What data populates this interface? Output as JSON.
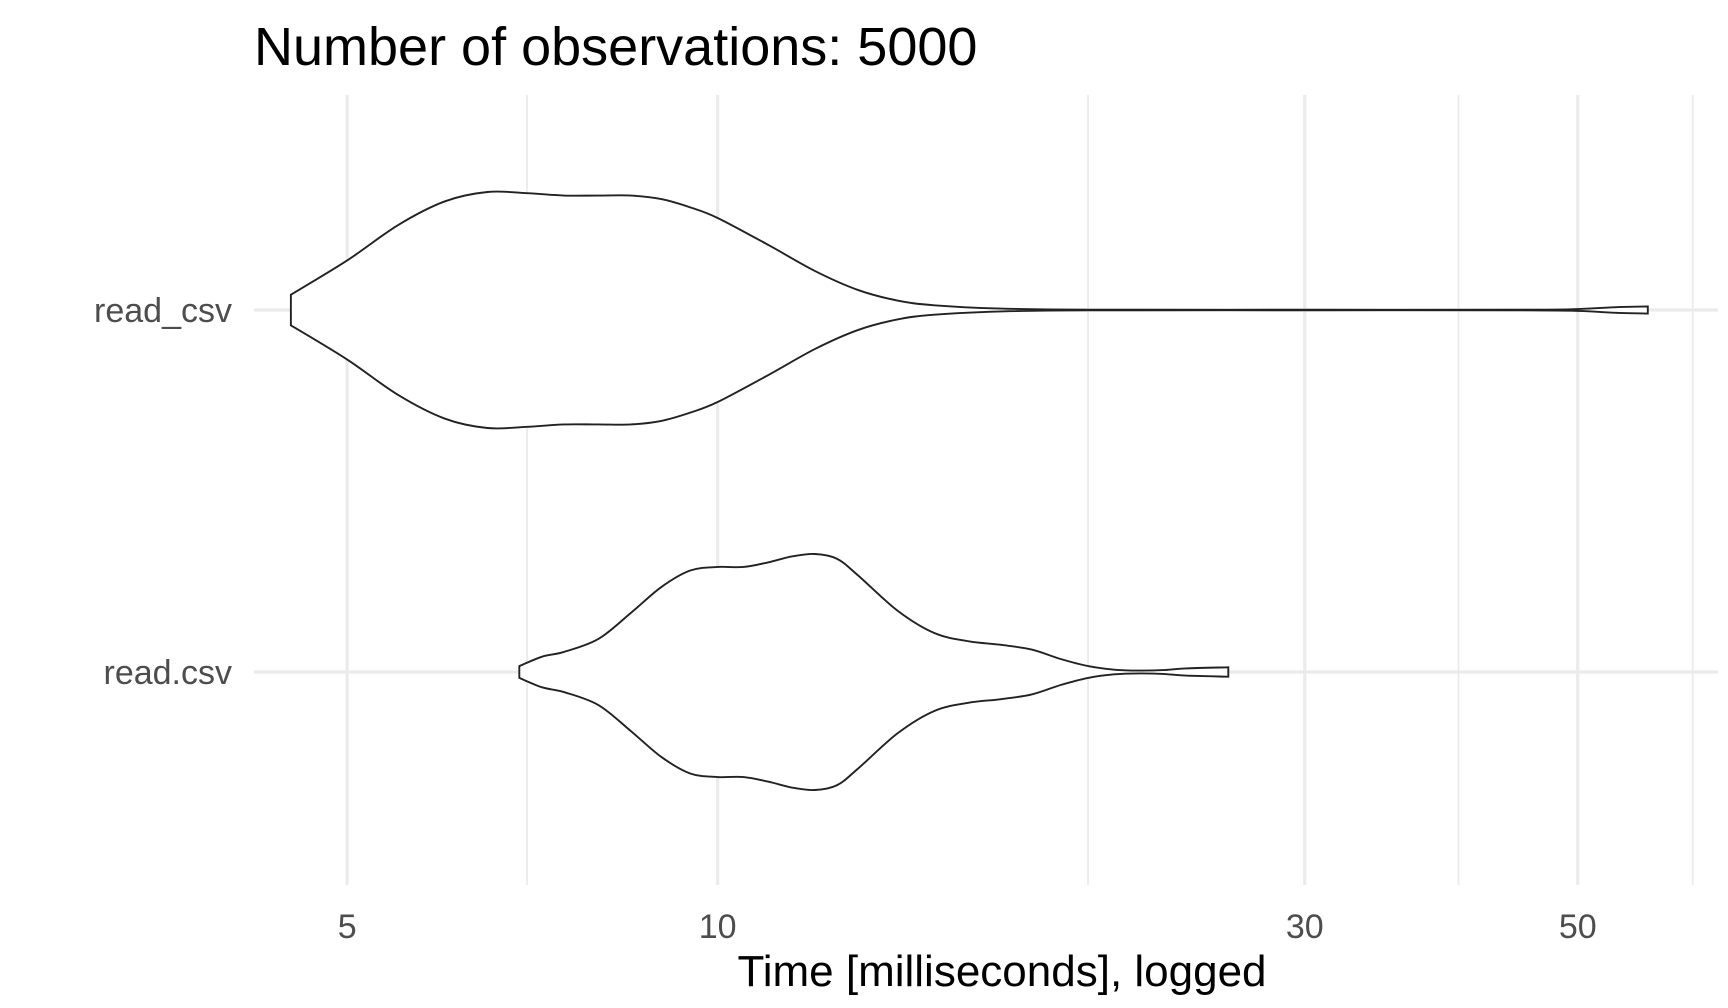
{
  "chart_data": {
    "type": "violin",
    "title": "Number of observations: 5000",
    "xlabel": "Time [milliseconds], logged",
    "ylabel": "",
    "x_scale": "log10",
    "xlim": [
      4.2,
      65
    ],
    "x_ticks": [
      5,
      10,
      30,
      50
    ],
    "x_tick_labels": [
      "5",
      "10",
      "30",
      "50"
    ],
    "x_minor_gridlines": [
      7,
      20,
      40,
      62
    ],
    "categories": [
      "read_csv",
      "read.csv"
    ],
    "grid": true,
    "series": [
      {
        "name": "read_csv",
        "min": 4.5,
        "max": 57,
        "density": [
          [
            4.5,
            0.13
          ],
          [
            5.0,
            0.42
          ],
          [
            5.5,
            0.72
          ],
          [
            6.0,
            0.92
          ],
          [
            6.5,
            1.0
          ],
          [
            7.0,
            0.99
          ],
          [
            7.5,
            0.97
          ],
          [
            8.0,
            0.97
          ],
          [
            8.5,
            0.97
          ],
          [
            9.0,
            0.94
          ],
          [
            9.5,
            0.87
          ],
          [
            10.0,
            0.78
          ],
          [
            11.0,
            0.55
          ],
          [
            12.0,
            0.33
          ],
          [
            13.0,
            0.17
          ],
          [
            14.0,
            0.08
          ],
          [
            15.0,
            0.04
          ],
          [
            17.0,
            0.012
          ],
          [
            20.0,
            0.003
          ],
          [
            30.0,
            0.002
          ],
          [
            45.0,
            0.002
          ],
          [
            50.0,
            0.008
          ],
          [
            54.0,
            0.025
          ],
          [
            57.0,
            0.03
          ]
        ]
      },
      {
        "name": "read.csv",
        "min": 6.9,
        "max": 26.0,
        "density": [
          [
            6.9,
            0.05
          ],
          [
            7.2,
            0.13
          ],
          [
            7.5,
            0.17
          ],
          [
            8.0,
            0.28
          ],
          [
            8.5,
            0.5
          ],
          [
            9.0,
            0.72
          ],
          [
            9.5,
            0.86
          ],
          [
            10.0,
            0.89
          ],
          [
            10.5,
            0.89
          ],
          [
            11.0,
            0.93
          ],
          [
            11.5,
            0.98
          ],
          [
            12.0,
            1.0
          ],
          [
            12.5,
            0.96
          ],
          [
            13.0,
            0.82
          ],
          [
            14.0,
            0.52
          ],
          [
            15.0,
            0.33
          ],
          [
            16.0,
            0.26
          ],
          [
            17.0,
            0.23
          ],
          [
            18.0,
            0.19
          ],
          [
            19.0,
            0.11
          ],
          [
            20.0,
            0.05
          ],
          [
            21.0,
            0.02
          ],
          [
            22.0,
            0.012
          ],
          [
            23.0,
            0.016
          ],
          [
            24.0,
            0.03
          ],
          [
            26.0,
            0.04
          ]
        ]
      }
    ]
  }
}
